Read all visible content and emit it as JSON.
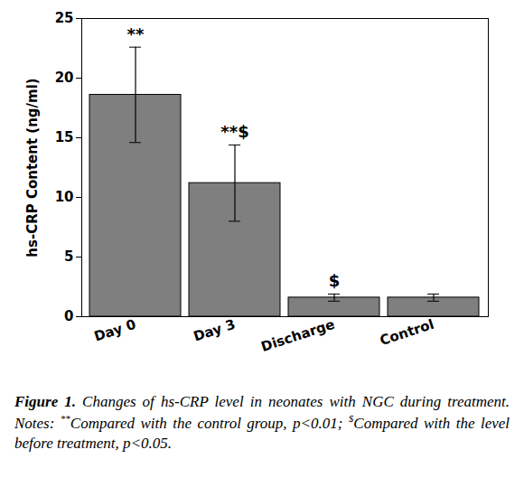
{
  "chart_data": {
    "type": "bar",
    "y_label": "hs-CRP Content (ng/ml)",
    "categories": [
      "Day 0",
      "Day 3",
      "Discharge",
      "Control"
    ],
    "values": [
      18.6,
      11.2,
      1.6,
      1.6
    ],
    "errors": [
      4.0,
      3.2,
      0.3,
      0.3
    ],
    "annotations": [
      "**",
      "**$",
      "$",
      null
    ],
    "color": "#7f7f7f",
    "ylim": [
      0,
      25
    ],
    "yticks": [
      0,
      5,
      10,
      15,
      20,
      25
    ],
    "grid": false,
    "caption": {
      "label": "Figure 1.",
      "text": "Changes of hs-CRP level in neonates with NGC during treatment. Notes:",
      "notes": [
        {
          "mark": "**",
          "text": "Compared with the control group, p<0.01;"
        },
        {
          "mark": "$",
          "text": "Compared with the level before treatment, p<0.05."
        }
      ]
    }
  }
}
